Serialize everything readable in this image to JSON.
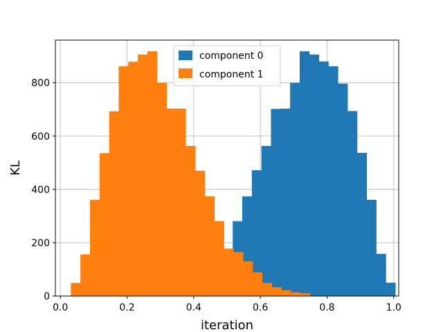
{
  "chart_data": {
    "type": "bar",
    "histogram": true,
    "xlabel": "iteration",
    "ylabel": "KL",
    "xlim": [
      -0.015,
      1.015
    ],
    "ylim": [
      0,
      960
    ],
    "grid": true,
    "legend_position": "top-center",
    "xticks": [
      {
        "value": 0.0,
        "label": "0.0"
      },
      {
        "value": 0.2,
        "label": "0.2"
      },
      {
        "value": 0.4,
        "label": "0.4"
      },
      {
        "value": 0.6,
        "label": "0.6"
      },
      {
        "value": 0.8,
        "label": "0.8"
      },
      {
        "value": 1.0,
        "label": "1.0"
      }
    ],
    "yticks": [
      {
        "value": 0,
        "label": "0"
      },
      {
        "value": 200,
        "label": "200"
      },
      {
        "value": 400,
        "label": "400"
      },
      {
        "value": 600,
        "label": "600"
      },
      {
        "value": 800,
        "label": "800"
      }
    ],
    "series": [
      {
        "name": "component 0",
        "color": "#1f77b4",
        "bin_start": 0.517,
        "bin_width": 0.0287,
        "values": [
          281,
          374,
          472,
          563,
          702,
          703,
          800,
          918,
          906,
          880,
          862,
          797,
          694,
          537,
          361,
          158,
          50
        ]
      },
      {
        "name": "component 1",
        "color": "#ff7f0e",
        "bin_start": 0.0315,
        "bin_width": 0.0287,
        "values": [
          49,
          156,
          361,
          536,
          693,
          862,
          879,
          906,
          918,
          800,
          703,
          703,
          563,
          470,
          374,
          281,
          178,
          165,
          130,
          89,
          49,
          33,
          22,
          14,
          10
        ]
      }
    ]
  }
}
